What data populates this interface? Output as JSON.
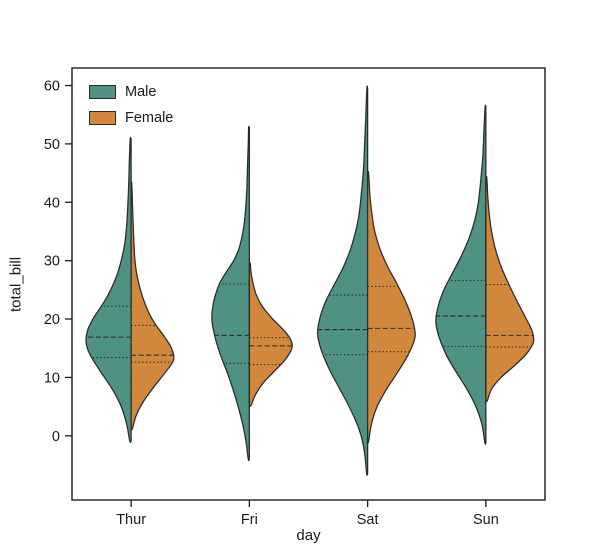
{
  "chart_data": {
    "type": "violin",
    "title": "",
    "xlabel": "day",
    "ylabel": "total_bill",
    "categories": [
      "Thur",
      "Fri",
      "Sat",
      "Sun"
    ],
    "y_ticks": [
      0,
      10,
      20,
      30,
      40,
      50,
      60
    ],
    "ylim": [
      -11,
      63
    ],
    "split": true,
    "inner": "quartile",
    "legend_position": "upper left",
    "grid": false,
    "frame_color": "#1a1a1a",
    "edge_color": "#2a2a2a",
    "series": [
      {
        "name": "Male",
        "color": "#4f9183",
        "side": "left",
        "violins": [
          {
            "category": "Thur",
            "width": 0.9,
            "min": -0.9,
            "q1": 13.4,
            "median": 16.9,
            "q3": 22.2,
            "max": 50.8,
            "profile": [
              [
                -0.9,
                0.03
              ],
              [
                2,
                0.1
              ],
              [
                5,
                0.22
              ],
              [
                8,
                0.42
              ],
              [
                11,
                0.68
              ],
              [
                14,
                0.92
              ],
              [
                16,
                1.0
              ],
              [
                18,
                0.97
              ],
              [
                20,
                0.85
              ],
              [
                22,
                0.68
              ],
              [
                24,
                0.52
              ],
              [
                27,
                0.34
              ],
              [
                30,
                0.22
              ],
              [
                33,
                0.14
              ],
              [
                36,
                0.1
              ],
              [
                40,
                0.07
              ],
              [
                44,
                0.05
              ],
              [
                47,
                0.04
              ],
              [
                50.8,
                0.02
              ]
            ]
          },
          {
            "category": "Fri",
            "width": 0.75,
            "min": -4.0,
            "q1": 12.4,
            "median": 17.2,
            "q3": 26.0,
            "max": 52.8,
            "profile": [
              [
                -4,
                0.03
              ],
              [
                -1,
                0.09
              ],
              [
                2,
                0.18
              ],
              [
                5,
                0.3
              ],
              [
                8,
                0.44
              ],
              [
                11,
                0.6
              ],
              [
                14,
                0.78
              ],
              [
                17,
                0.92
              ],
              [
                20,
                1.0
              ],
              [
                23,
                0.95
              ],
              [
                26,
                0.8
              ],
              [
                28,
                0.62
              ],
              [
                30,
                0.42
              ],
              [
                32,
                0.28
              ],
              [
                35,
                0.17
              ],
              [
                38,
                0.11
              ],
              [
                42,
                0.07
              ],
              [
                46,
                0.05
              ],
              [
                50,
                0.03
              ],
              [
                52.8,
                0.02
              ]
            ]
          },
          {
            "category": "Sat",
            "width": 1.0,
            "min": -6.5,
            "q1": 13.9,
            "median": 18.2,
            "q3": 24.1,
            "max": 59.5,
            "profile": [
              [
                -6.5,
                0.02
              ],
              [
                -3,
                0.06
              ],
              [
                0,
                0.13
              ],
              [
                3,
                0.26
              ],
              [
                6,
                0.43
              ],
              [
                9,
                0.62
              ],
              [
                12,
                0.8
              ],
              [
                15,
                0.94
              ],
              [
                17.5,
                1.0
              ],
              [
                20,
                0.96
              ],
              [
                23,
                0.84
              ],
              [
                26,
                0.66
              ],
              [
                29,
                0.48
              ],
              [
                32,
                0.34
              ],
              [
                35,
                0.24
              ],
              [
                38,
                0.17
              ],
              [
                42,
                0.12
              ],
              [
                46,
                0.08
              ],
              [
                50,
                0.06
              ],
              [
                54,
                0.04
              ],
              [
                59.5,
                0.015
              ]
            ]
          },
          {
            "category": "Sun",
            "width": 1.0,
            "min": -1.2,
            "q1": 15.3,
            "median": 20.5,
            "q3": 26.6,
            "max": 56.3,
            "profile": [
              [
                -1.2,
                0.02
              ],
              [
                2,
                0.08
              ],
              [
                5,
                0.2
              ],
              [
                8,
                0.38
              ],
              [
                11,
                0.6
              ],
              [
                14,
                0.8
              ],
              [
                17,
                0.94
              ],
              [
                19.5,
                1.0
              ],
              [
                22,
                0.96
              ],
              [
                25,
                0.84
              ],
              [
                28,
                0.66
              ],
              [
                31,
                0.48
              ],
              [
                34,
                0.33
              ],
              [
                37,
                0.22
              ],
              [
                40,
                0.15
              ],
              [
                44,
                0.1
              ],
              [
                48,
                0.06
              ],
              [
                52,
                0.04
              ],
              [
                56.3,
                0.015
              ]
            ]
          }
        ]
      },
      {
        "name": "Female",
        "color": "#d1883c",
        "side": "right",
        "violins": [
          {
            "category": "Thur",
            "width": 0.85,
            "min": 1.2,
            "q1": 12.6,
            "median": 13.8,
            "q3": 18.9,
            "max": 43.1,
            "profile": [
              [
                1.2,
                0.03
              ],
              [
                3.5,
                0.12
              ],
              [
                6,
                0.3
              ],
              [
                8.5,
                0.55
              ],
              [
                11,
                0.82
              ],
              [
                13,
                1.0
              ],
              [
                15,
                0.95
              ],
              [
                17,
                0.78
              ],
              [
                19,
                0.58
              ],
              [
                21,
                0.42
              ],
              [
                24,
                0.26
              ],
              [
                27,
                0.15
              ],
              [
                30,
                0.09
              ],
              [
                34,
                0.06
              ],
              [
                38,
                0.04
              ],
              [
                43.1,
                0.015
              ]
            ]
          },
          {
            "category": "Fri",
            "width": 0.85,
            "min": 5.2,
            "q1": 12.2,
            "median": 15.4,
            "q3": 16.8,
            "max": 29.5,
            "profile": [
              [
                5.2,
                0.04
              ],
              [
                7,
                0.14
              ],
              [
                9,
                0.32
              ],
              [
                11,
                0.58
              ],
              [
                13,
                0.84
              ],
              [
                15,
                1.0
              ],
              [
                16.5,
                0.97
              ],
              [
                18,
                0.82
              ],
              [
                20,
                0.55
              ],
              [
                22,
                0.32
              ],
              [
                24,
                0.17
              ],
              [
                26,
                0.09
              ],
              [
                28,
                0.04
              ],
              [
                29.5,
                0.02
              ]
            ]
          },
          {
            "category": "Sat",
            "width": 0.95,
            "min": -1.0,
            "q1": 14.4,
            "median": 18.4,
            "q3": 25.6,
            "max": 45.0,
            "profile": [
              [
                -1,
                0.02
              ],
              [
                2,
                0.08
              ],
              [
                5,
                0.2
              ],
              [
                8,
                0.4
              ],
              [
                11,
                0.64
              ],
              [
                14,
                0.86
              ],
              [
                17,
                1.0
              ],
              [
                20,
                0.94
              ],
              [
                23,
                0.8
              ],
              [
                26,
                0.62
              ],
              [
                29,
                0.42
              ],
              [
                32,
                0.26
              ],
              [
                35,
                0.15
              ],
              [
                38,
                0.09
              ],
              [
                41,
                0.05
              ],
              [
                45,
                0.02
              ]
            ]
          },
          {
            "category": "Sun",
            "width": 0.95,
            "min": 6.0,
            "q1": 15.2,
            "median": 17.2,
            "q3": 25.9,
            "max": 44.2,
            "profile": [
              [
                6,
                0.03
              ],
              [
                8,
                0.12
              ],
              [
                10,
                0.32
              ],
              [
                12,
                0.6
              ],
              [
                14,
                0.85
              ],
              [
                16,
                1.0
              ],
              [
                18,
                0.97
              ],
              [
                20,
                0.85
              ],
              [
                23,
                0.66
              ],
              [
                26,
                0.48
              ],
              [
                29,
                0.32
              ],
              [
                32,
                0.2
              ],
              [
                35,
                0.12
              ],
              [
                38,
                0.07
              ],
              [
                41,
                0.04
              ],
              [
                44.2,
                0.02
              ]
            ]
          }
        ]
      }
    ]
  }
}
